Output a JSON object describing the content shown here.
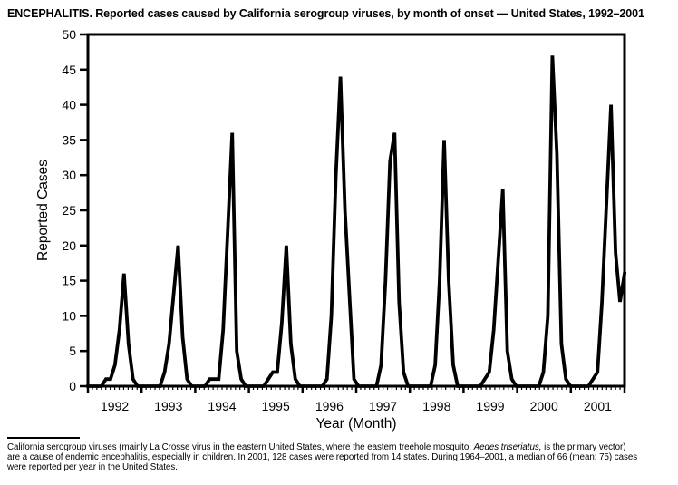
{
  "title": "ENCEPHALITIS. Reported cases caused by California serogroup viruses, by month of onset — United States, 1992–2001",
  "colors": {
    "line": "#000000",
    "background": "#ffffff",
    "text": "#000000"
  },
  "chart_data": {
    "type": "line",
    "title": "ENCEPHALITIS. Reported cases caused by California serogroup viruses, by month of onset — United States, 1992–2001",
    "xlabel": "Year (Month)",
    "ylabel": "Reported Cases",
    "ylim": [
      0,
      50
    ],
    "ytick_step": 5,
    "grid": false,
    "legend": "none",
    "x_unit": "month of onset, Jan 1992 – Dec 2001",
    "year_labels": [
      "1992",
      "1993",
      "1994",
      "1995",
      "1996",
      "1997",
      "1998",
      "1999",
      "2000",
      "2001"
    ],
    "yearly_peaks": [
      16,
      20,
      36,
      20,
      44,
      36,
      35,
      28,
      47,
      40
    ],
    "series": [
      {
        "name": "Reported cases",
        "values": [
          0,
          0,
          0,
          0,
          1,
          1,
          3,
          8,
          16,
          6,
          1,
          0,
          0,
          0,
          0,
          0,
          0,
          2,
          6,
          13,
          20,
          7,
          1,
          0,
          0,
          0,
          0,
          1,
          1,
          1,
          8,
          22,
          36,
          5,
          1,
          0,
          0,
          0,
          0,
          0,
          1,
          2,
          2,
          9,
          20,
          6,
          1,
          0,
          0,
          0,
          0,
          0,
          0,
          1,
          10,
          30,
          44,
          25,
          13,
          1,
          0,
          0,
          0,
          0,
          0,
          3,
          15,
          32,
          36,
          12,
          2,
          0,
          0,
          0,
          0,
          0,
          0,
          3,
          15,
          35,
          15,
          3,
          0,
          0,
          0,
          0,
          0,
          0,
          1,
          2,
          8,
          18,
          28,
          5,
          1,
          0,
          0,
          0,
          0,
          0,
          0,
          2,
          10,
          47,
          33,
          6,
          1,
          0,
          0,
          0,
          0,
          0,
          1,
          2,
          12,
          26,
          40,
          19,
          12,
          16
        ]
      }
    ]
  },
  "footnote": {
    "line1_pre": "California serogroup viruses (mainly La Crosse virus in the eastern United States, where the eastern treehole mosquito, ",
    "line1_italic": "Aedes triseriatus,",
    "line1_post": " is the primary vector)",
    "line2": "are a cause of endemic encephalitis, especially in children. In 2001, 128 cases were reported from 14 states. During 1964–2001, a median of 66 (mean: 75) cases",
    "line3": "were reported per year in the United States."
  }
}
